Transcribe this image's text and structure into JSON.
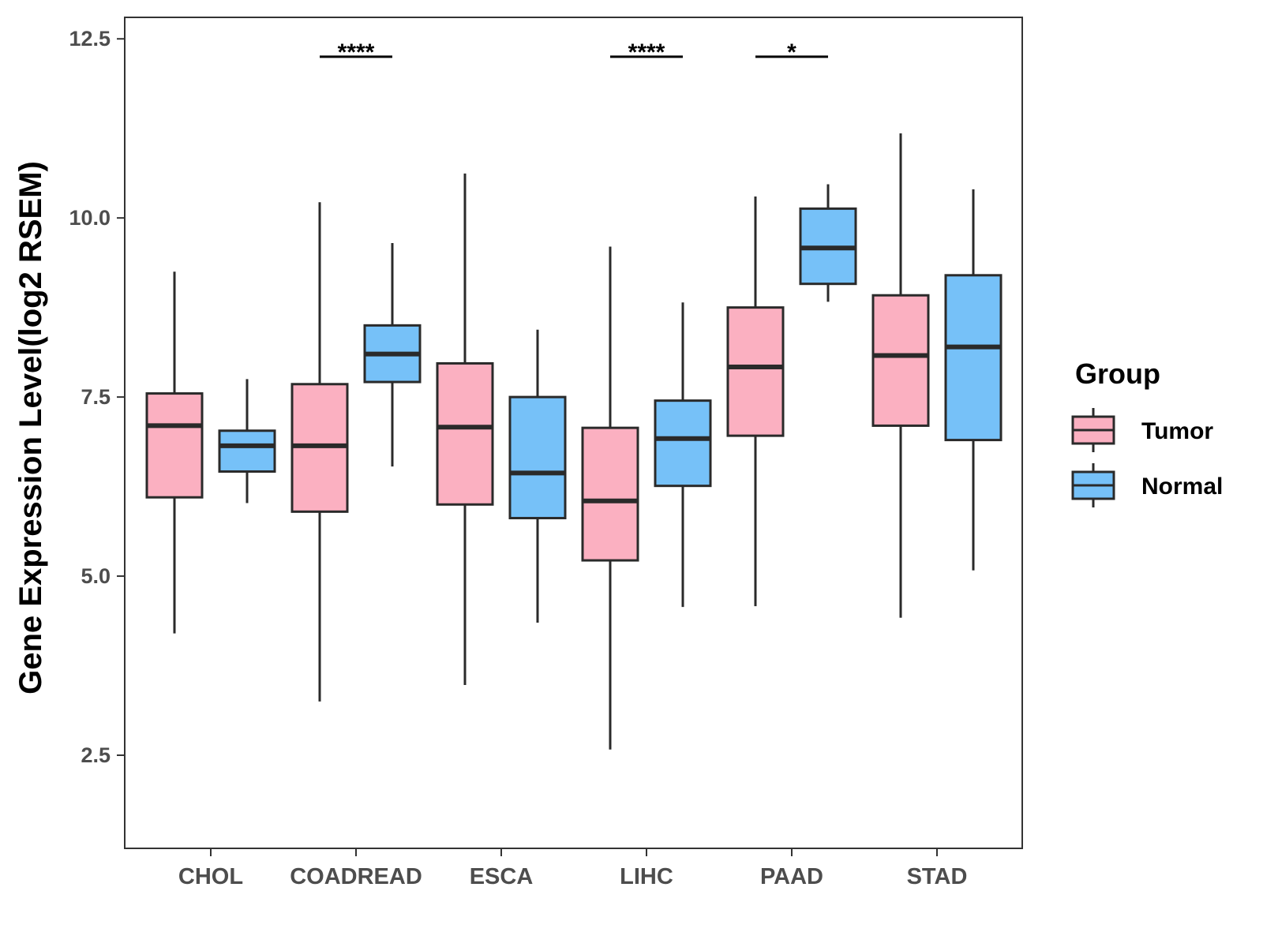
{
  "chart_data": {
    "type": "boxplot",
    "title": "",
    "xlabel": "",
    "ylabel": "Gene Expression Level(log2 RSEM)",
    "ylim": [
      1.2,
      12.8
    ],
    "yticks": [
      2.5,
      5.0,
      7.5,
      10.0,
      12.5
    ],
    "ytick_labels": [
      "2.5",
      "5.0",
      "7.5",
      "10.0",
      "12.5"
    ],
    "grid": false,
    "categories": [
      "CHOL",
      "COADREAD",
      "ESCA",
      "LIHC",
      "PAAD",
      "STAD"
    ],
    "legend": {
      "title": "Group",
      "position": "right",
      "items": [
        {
          "label": "Tumor",
          "color": "#FBB0C1"
        },
        {
          "label": "Normal",
          "color": "#76C1F8"
        }
      ]
    },
    "series": [
      {
        "name": "Tumor",
        "color": "#FBB0C1",
        "boxes": [
          {
            "category": "CHOL",
            "min": 4.2,
            "q1": 6.1,
            "median": 7.1,
            "q3": 7.55,
            "max": 9.25
          },
          {
            "category": "COADREAD",
            "min": 3.25,
            "q1": 5.9,
            "median": 6.82,
            "q3": 7.68,
            "max": 10.22
          },
          {
            "category": "ESCA",
            "min": 3.48,
            "q1": 6.0,
            "median": 7.08,
            "q3": 7.97,
            "max": 10.62
          },
          {
            "category": "LIHC",
            "min": 2.58,
            "q1": 5.22,
            "median": 6.05,
            "q3": 7.07,
            "max": 9.6
          },
          {
            "category": "PAAD",
            "min": 4.58,
            "q1": 6.96,
            "median": 7.92,
            "q3": 8.75,
            "max": 10.3
          },
          {
            "category": "STAD",
            "min": 4.42,
            "q1": 7.1,
            "median": 8.08,
            "q3": 8.92,
            "max": 11.18
          }
        ]
      },
      {
        "name": "Normal",
        "color": "#76C1F8",
        "boxes": [
          {
            "category": "CHOL",
            "min": 6.02,
            "q1": 6.46,
            "median": 6.82,
            "q3": 7.03,
            "max": 7.75
          },
          {
            "category": "COADREAD",
            "min": 6.53,
            "q1": 7.71,
            "median": 8.1,
            "q3": 8.5,
            "max": 9.65
          },
          {
            "category": "ESCA",
            "min": 4.35,
            "q1": 5.81,
            "median": 6.44,
            "q3": 7.5,
            "max": 8.44
          },
          {
            "category": "LIHC",
            "min": 4.57,
            "q1": 6.26,
            "median": 6.92,
            "q3": 7.45,
            "max": 8.82
          },
          {
            "category": "PAAD",
            "min": 8.83,
            "q1": 9.08,
            "median": 9.58,
            "q3": 10.13,
            "max": 10.47
          },
          {
            "category": "STAD",
            "min": 5.08,
            "q1": 6.9,
            "median": 8.2,
            "q3": 9.2,
            "max": 10.4
          }
        ]
      }
    ],
    "significance": [
      {
        "category": "CHOL",
        "label": ""
      },
      {
        "category": "COADREAD",
        "label": "****"
      },
      {
        "category": "ESCA",
        "label": ""
      },
      {
        "category": "LIHC",
        "label": "****"
      },
      {
        "category": "PAAD",
        "label": "*"
      },
      {
        "category": "STAD",
        "label": ""
      }
    ],
    "significance_y": 12.25
  },
  "colors": {
    "axis": "#333333",
    "box_stroke": "#2a2a2a",
    "tick_text": "#4d4d4d"
  }
}
